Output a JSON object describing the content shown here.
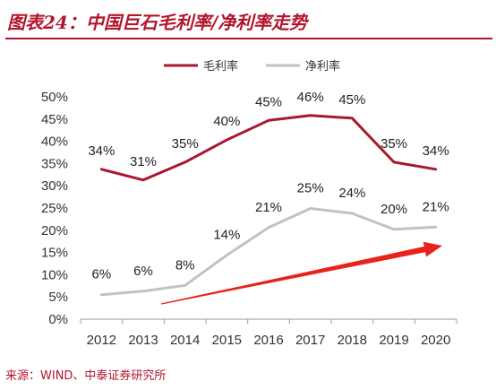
{
  "header": {
    "title": "图表24：中国巨石毛利率/净利率走势"
  },
  "footer": {
    "source": "来源：WIND、中泰证券研究所"
  },
  "colors": {
    "gross": "#a8182f",
    "net": "#c2c2c2",
    "arrow": "#e8231b",
    "accent": "#b3152c"
  },
  "chart_data": {
    "type": "line",
    "categories": [
      "2012",
      "2013",
      "2014",
      "2015",
      "2016",
      "2017",
      "2018",
      "2019",
      "2020"
    ],
    "ylim": [
      0,
      50
    ],
    "yticks": [
      "0%",
      "5%",
      "10%",
      "15%",
      "20%",
      "25%",
      "30%",
      "35%",
      "40%",
      "45%",
      "50%"
    ],
    "grid": false,
    "legend_position": "top",
    "series": [
      {
        "name": "毛利率",
        "values": [
          33.7,
          31.3,
          35.3,
          40.3,
          44.7,
          45.8,
          45.2,
          35.3,
          33.7
        ],
        "labels": [
          "34%",
          "31%",
          "35%",
          "40%",
          "45%",
          "46%",
          "45%",
          "35%",
          "34%"
        ]
      },
      {
        "name": "净利率",
        "values": [
          5.5,
          6.3,
          7.6,
          14.4,
          20.6,
          24.9,
          23.8,
          20.2,
          20.7
        ],
        "labels": [
          "6%",
          "6%",
          "8%",
          "14%",
          "21%",
          "25%",
          "24%",
          "20%",
          "21%"
        ]
      }
    ]
  }
}
